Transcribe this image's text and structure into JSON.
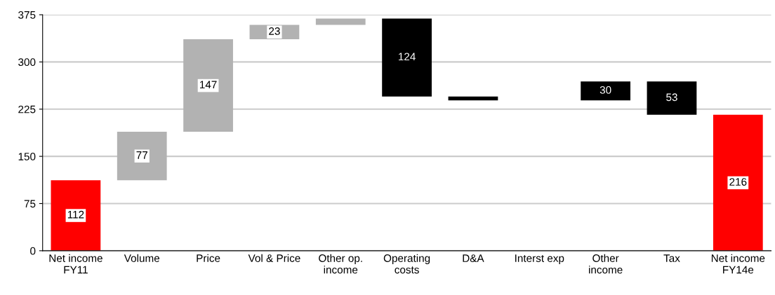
{
  "chart_data": {
    "type": "bar",
    "categories": [
      "Net income\nFY11",
      "Volume",
      "Price",
      "Vol & Price",
      "Other op.\nincome",
      "Operating\ncosts",
      "D&A",
      "Interst exp",
      "Other\nincome",
      "Tax",
      "Net income\nFY14e"
    ],
    "base": [
      0,
      112,
      189,
      336,
      359,
      245,
      239,
      null,
      239,
      216,
      0
    ],
    "values": [
      112,
      77,
      147,
      23,
      10,
      124,
      6,
      null,
      30,
      53,
      216
    ],
    "colors": [
      "#ff0000",
      "#b2b2b2",
      "#b2b2b2",
      "#b2b2b2",
      "#b2b2b2",
      "#000000",
      "#000000",
      "#000000",
      "#000000",
      "#000000",
      "#ff0000"
    ],
    "value_labels": [
      "112",
      "77",
      "147",
      "23",
      null,
      "124",
      null,
      null,
      "30",
      "53",
      "216"
    ],
    "ylim": [
      0,
      375
    ],
    "yticks": [
      0,
      75,
      150,
      225,
      300,
      375
    ],
    "grid": "y"
  }
}
